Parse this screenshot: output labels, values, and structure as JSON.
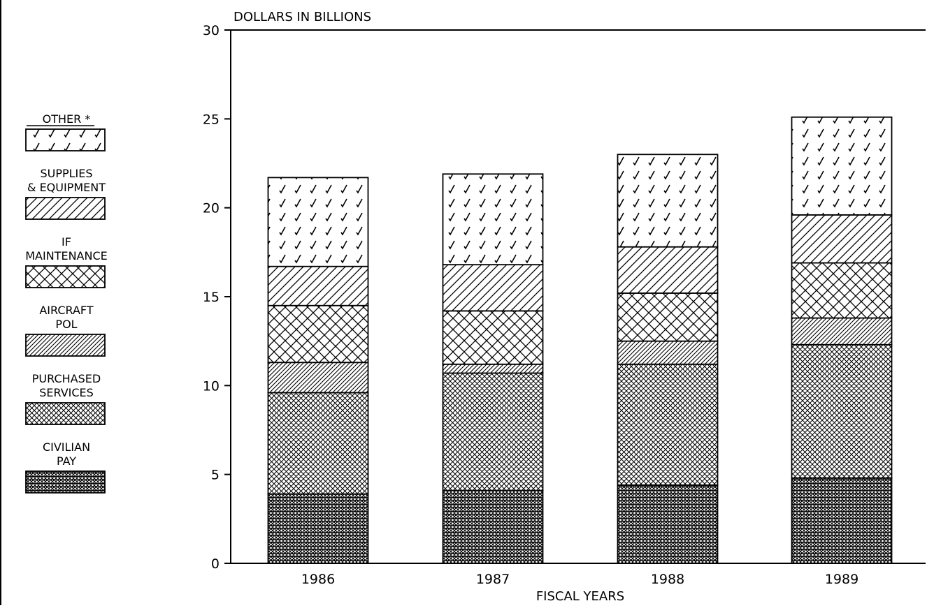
{
  "chart_data": {
    "type": "bar",
    "stacked": true,
    "title": "",
    "ylabel": "DOLLARS IN BILLIONS",
    "xlabel": "FISCAL YEARS",
    "ylim": [
      0,
      30
    ],
    "yticks": [
      "0",
      "5",
      "10",
      "15",
      "20",
      "25",
      "30"
    ],
    "categories": [
      "1986",
      "1987",
      "1988",
      "1989"
    ],
    "grid": false,
    "legend_placement": "left",
    "series": [
      {
        "name": "CIVILIAN PAY",
        "pattern": "dense-grid",
        "values": [
          3.9,
          4.1,
          4.4,
          4.8
        ]
      },
      {
        "name": "PURCHASED SERVICES",
        "pattern": "crosshatch-fine",
        "values": [
          5.7,
          6.6,
          6.8,
          7.5
        ]
      },
      {
        "name": "AIRCRAFT POL",
        "pattern": "diagonal-dense",
        "values": [
          1.7,
          0.5,
          1.3,
          1.5
        ]
      },
      {
        "name": "IF MAINTENANCE",
        "pattern": "crosshatch-coarse",
        "values": [
          3.2,
          3.0,
          2.7,
          3.1
        ]
      },
      {
        "name": "SUPPLIES & EQUIPMENT",
        "pattern": "diagonal-sparse",
        "values": [
          2.2,
          2.6,
          2.6,
          2.7
        ]
      },
      {
        "name": "OTHER *",
        "pattern": "checkmarks",
        "values": [
          5.0,
          5.1,
          5.2,
          5.5
        ]
      }
    ],
    "legend": [
      {
        "lines": [
          "OTHER *"
        ],
        "pattern": "checkmarks",
        "underline_first": true
      },
      {
        "lines": [
          "SUPPLIES",
          "& EQUIPMENT"
        ],
        "pattern": "diagonal-sparse"
      },
      {
        "lines": [
          "IF",
          "MAINTENANCE"
        ],
        "pattern": "crosshatch-coarse"
      },
      {
        "lines": [
          "AIRCRAFT",
          "POL"
        ],
        "pattern": "diagonal-dense"
      },
      {
        "lines": [
          "PURCHASED",
          "SERVICES"
        ],
        "pattern": "crosshatch-fine"
      },
      {
        "lines": [
          "CIVILIAN",
          "PAY"
        ],
        "pattern": "dense-grid"
      }
    ]
  }
}
